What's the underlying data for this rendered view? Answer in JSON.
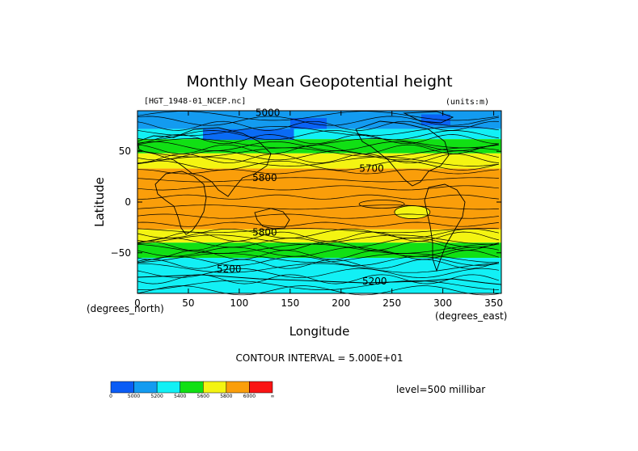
{
  "chart_data": {
    "type": "heatmap",
    "title": "Monthly Mean Geopotential height",
    "dataset_label": "[HGT_1948-01_NCEP.nc]",
    "units_label": "(units:m)",
    "xlabel": "Longitude",
    "ylabel": "Latitude",
    "x_unit_label": "(degrees_east)",
    "y_unit_label": "(degrees_north)",
    "xlim": [
      0,
      357.5
    ],
    "ylim": [
      -90,
      90
    ],
    "x_ticks": [
      0,
      50,
      100,
      150,
      200,
      250,
      300,
      350
    ],
    "y_ticks": [
      50,
      0,
      -50
    ],
    "y_tick_labels": [
      "50",
      "0",
      "−50"
    ],
    "contour_interval_text": "CONTOUR INTERVAL = 5.000E+01",
    "level_text": "level=500 millibar",
    "colorbar": {
      "labels": [
        "0",
        "5000",
        "5200",
        "5400",
        "5600",
        "5800",
        "6000",
        "∞"
      ],
      "colors": [
        "#0a5cf5",
        "#139bf0",
        "#12f0f5",
        "#11e014",
        "#f4f412",
        "#fa9e0a",
        "#fa1414"
      ]
    },
    "bands": [
      {
        "lat": [
          72,
          90
        ],
        "color": "#139bf0"
      },
      {
        "lat": [
          62,
          72
        ],
        "color": "#12f0f5"
      },
      {
        "lat": [
          48,
          62
        ],
        "color": "#11e014"
      },
      {
        "lat": [
          33,
          48
        ],
        "color": "#f4f412"
      },
      {
        "lat": [
          -27,
          33
        ],
        "color": "#fa9e0a"
      },
      {
        "lat": [
          -40,
          -27
        ],
        "color": "#f4f412"
      },
      {
        "lat": [
          -55,
          -40
        ],
        "color": "#11e014"
      },
      {
        "lat": [
          -90,
          -55
        ],
        "color": "#12f0f5"
      }
    ],
    "contour_labels": [
      {
        "text": "5000",
        "lon": 128,
        "lat": 88
      },
      {
        "text": "5700",
        "lon": 230,
        "lat": 33
      },
      {
        "text": "5800",
        "lon": 125,
        "lat": 24
      },
      {
        "text": "5800",
        "lon": 125,
        "lat": -30
      },
      {
        "text": "5200",
        "lon": 90,
        "lat": -66
      },
      {
        "text": "5200",
        "lon": 233,
        "lat": -78
      }
    ]
  }
}
